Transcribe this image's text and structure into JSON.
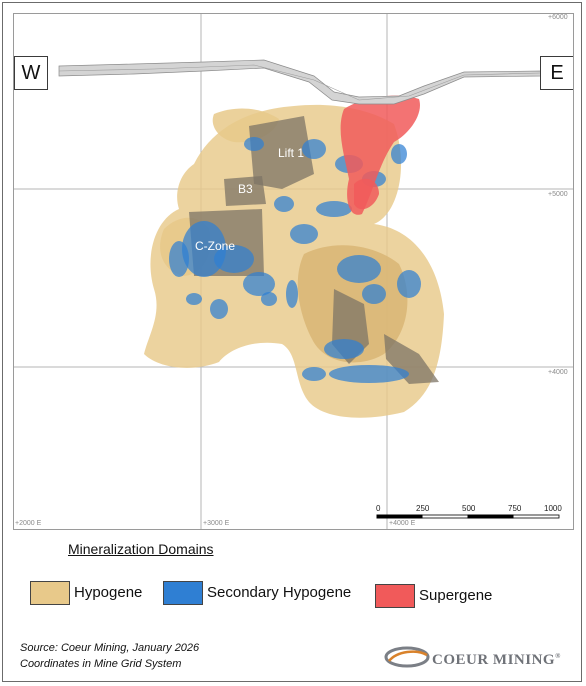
{
  "section": {
    "direction_left": "W",
    "direction_right": "E",
    "grid_labels": {
      "elev_top": "+6000",
      "elev_mid": "+5000",
      "elev_low": "+4000",
      "east_left": "+2000 E",
      "east_mid": "+3000 E",
      "east_right": "+4000 E"
    },
    "zone_labels": {
      "lift1": "Lift 1",
      "b3": "B3",
      "czone": "C-Zone"
    },
    "scale_bar": {
      "ticks": [
        "0",
        "250",
        "500",
        "750",
        "1000"
      ]
    },
    "colors": {
      "hypogene": "#e8c98a",
      "secondary_hypogene": "#2f7fd3",
      "supergene": "#f15a5a",
      "topography": "#a9a9a9"
    }
  },
  "legend": {
    "title": "Mineralization Domains",
    "items": [
      {
        "label": "Hypogene",
        "color": "#e8c98a"
      },
      {
        "label": "Secondary Hypogene",
        "color": "#2f7fd3"
      },
      {
        "label": "Supergene",
        "color": "#f15a5a"
      }
    ]
  },
  "footer": {
    "source_line1": "Source: Coeur Mining, January 2026",
    "source_line2": "Coordinates in Mine Grid System",
    "logo_text": "COEUR MINING",
    "logo_mark": "®"
  }
}
